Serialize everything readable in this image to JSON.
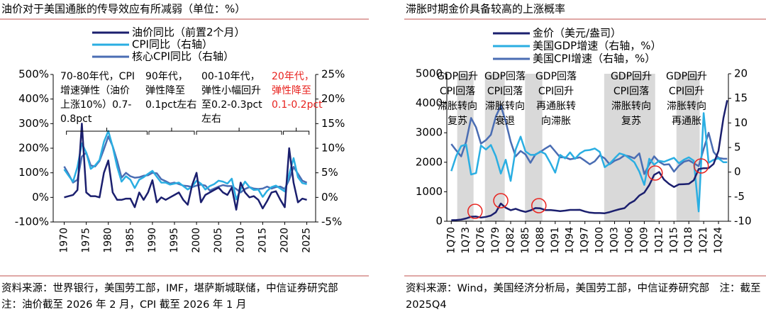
{
  "chart_data": [
    {
      "type": "line",
      "title": "油价对于美国通胀的传导效应有所减弱（单位：%）",
      "x": [
        1970,
        1971,
        1972,
        1973,
        1974,
        1975,
        1976,
        1977,
        1978,
        1979,
        1980,
        1981,
        1982,
        1983,
        1984,
        1985,
        1986,
        1987,
        1988,
        1989,
        1990,
        1991,
        1992,
        1993,
        1994,
        1995,
        1996,
        1997,
        1998,
        1999,
        2000,
        2001,
        2002,
        2003,
        2004,
        2005,
        2006,
        2007,
        2008,
        2009,
        2010,
        2011,
        2012,
        2013,
        2014,
        2015,
        2016,
        2017,
        2018,
        2019,
        2020,
        2021,
        2022,
        2023,
        2024,
        2025
      ],
      "xlim": [
        1967.5,
        2027
      ],
      "xticks": [
        1970,
        1975,
        1980,
        1985,
        1990,
        1995,
        2000,
        2005,
        2010,
        2015,
        2020,
        2025
      ],
      "ylim": [
        -100,
        500
      ],
      "yticks": [
        {
          "value": -100,
          "label": "-100%"
        },
        {
          "value": 0,
          "label": "0%"
        },
        {
          "value": 100,
          "label": "100%"
        },
        {
          "value": 200,
          "label": "200%"
        },
        {
          "value": 300,
          "label": "300%"
        },
        {
          "value": 400,
          "label": "400%"
        },
        {
          "value": 500,
          "label": "500%"
        }
      ],
      "y2lim": [
        -5,
        25
      ],
      "y2ticks": [
        {
          "value": -5,
          "label": "-5%"
        },
        {
          "value": 0,
          "label": "0%"
        },
        {
          "value": 5,
          "label": "5%"
        },
        {
          "value": 10,
          "label": "10%"
        },
        {
          "value": 15,
          "label": "15%"
        },
        {
          "value": 20,
          "label": "20%"
        },
        {
          "value": 25,
          "label": "25%"
        }
      ],
      "series": [
        {
          "name": "油价同比（前置2个月）",
          "color": "#1b1f6e",
          "values": [
            0,
            5,
            10,
            30,
            300,
            20,
            5,
            5,
            0,
            100,
            150,
            20,
            -10,
            -10,
            -5,
            -5,
            -40,
            20,
            -10,
            20,
            70,
            -20,
            0,
            -10,
            0,
            10,
            20,
            -10,
            -30,
            50,
            100,
            -20,
            10,
            20,
            30,
            40,
            20,
            10,
            40,
            -50,
            60,
            20,
            0,
            5,
            -10,
            -45,
            -15,
            20,
            25,
            -10,
            -40,
            200,
            60,
            -20,
            -5,
            -10
          ]
        },
        {
          "name": "CPI同比（右轴）",
          "color": "#2aaee2",
          "axis": "y2",
          "values": [
            5.7,
            4.4,
            3.2,
            6.2,
            11,
            9.1,
            5.8,
            6.5,
            7.6,
            11.3,
            13.5,
            10.3,
            6.2,
            3.2,
            4.3,
            3.6,
            1.9,
            3.6,
            4.1,
            4.8,
            5.4,
            4.2,
            3,
            3,
            2.6,
            2.8,
            3,
            2.3,
            1.6,
            2.2,
            3.4,
            2.8,
            1.6,
            2.3,
            2.7,
            3.4,
            3.2,
            2.8,
            3.8,
            -0.4,
            1.6,
            3.2,
            2.1,
            1.5,
            1.6,
            0.1,
            1.3,
            2.1,
            2.4,
            1.8,
            1.2,
            4.7,
            8,
            4.1,
            2.9,
            2.7
          ]
        },
        {
          "name": "核心CPI同比（右轴）",
          "color": "#4a6db3",
          "axis": "y2",
          "values": [
            6.3,
            4.7,
            3,
            3.6,
            8.3,
            9.1,
            6.5,
            6.3,
            7.4,
            9.8,
            12.4,
            10.4,
            7.4,
            4,
            5,
            4.3,
            4,
            4.1,
            4.4,
            4.5,
            5,
            4.9,
            3.7,
            3.3,
            2.8,
            3,
            2.7,
            2.4,
            2.3,
            2.1,
            2.4,
            2.6,
            2.4,
            1.4,
            1.8,
            2.2,
            2.5,
            2.3,
            2.3,
            1.7,
            1,
            1.7,
            2.1,
            1.8,
            1.7,
            1.8,
            2.2,
            1.8,
            2.1,
            2.2,
            1.7,
            3.6,
            6.2,
            4.8,
            3.4,
            3
          ]
        }
      ],
      "annotations": [
        {
          "lines": [
            "70-80年代，CPI",
            "增速弹性（油价",
            "上涨10%）0.7-",
            "0.8pct"
          ],
          "color": "#000000"
        },
        {
          "lines": [
            "90年代，",
            "弹性降至",
            "0.1pct左右"
          ],
          "color": "#000000"
        },
        {
          "lines": [
            "00-10年代，",
            "弹性小幅回升",
            "至0.2-0.3pct",
            "左右"
          ],
          "color": "#000000"
        },
        {
          "lines": [
            "20年代，",
            "弹性降至",
            "0.1-0.2pct"
          ],
          "color": "#e8231f"
        }
      ],
      "brackets": [
        [
          1970.5,
          1988.8
        ],
        [
          1989.2,
          1999.5
        ],
        [
          2000,
          2019.3
        ],
        [
          2019.7,
          2025.5
        ]
      ],
      "source": "资料来源：世界银行，美国劳工部，IMF，堪萨斯城联储，中信证券研究部　注：油价截至 2026 年 2 月，CPI 截至 2026 年 1 月"
    },
    {
      "type": "line",
      "title": "滞胀时期金价具备较高的上涨概率",
      "x": [
        1970,
        1971,
        1972,
        1973,
        1974,
        1975,
        1976,
        1977,
        1978,
        1979,
        1980,
        1981,
        1982,
        1983,
        1984,
        1985,
        1986,
        1987,
        1988,
        1989,
        1990,
        1991,
        1992,
        1993,
        1994,
        1995,
        1996,
        1997,
        1998,
        1999,
        2000,
        2001,
        2002,
        2003,
        2004,
        2005,
        2006,
        2007,
        2008,
        2009,
        2010,
        2011,
        2012,
        2013,
        2014,
        2015,
        2016,
        2017,
        2018,
        2019,
        2020,
        2021,
        2022,
        2023,
        2024,
        2025,
        2025.75
      ],
      "xlim": [
        1969.1,
        2026
      ],
      "xticks": [
        {
          "value": 1970,
          "label": "1Q70"
        },
        {
          "value": 1973,
          "label": "1Q73"
        },
        {
          "value": 1976,
          "label": "1Q76"
        },
        {
          "value": 1979,
          "label": "1Q79"
        },
        {
          "value": 1982,
          "label": "1Q82"
        },
        {
          "value": 1985,
          "label": "1Q85"
        },
        {
          "value": 1988,
          "label": "1Q88"
        },
        {
          "value": 1991,
          "label": "1Q91"
        },
        {
          "value": 1994,
          "label": "1Q94"
        },
        {
          "value": 1997,
          "label": "1Q97"
        },
        {
          "value": 2000,
          "label": "1Q00"
        },
        {
          "value": 2003,
          "label": "1Q03"
        },
        {
          "value": 2006,
          "label": "1Q06"
        },
        {
          "value": 2009,
          "label": "1Q09"
        },
        {
          "value": 2012,
          "label": "1Q12"
        },
        {
          "value": 2015,
          "label": "1Q15"
        },
        {
          "value": 2018,
          "label": "1Q18"
        },
        {
          "value": 2021,
          "label": "1Q21"
        },
        {
          "value": 2024,
          "label": "1Q24"
        }
      ],
      "ylim": [
        0,
        5000
      ],
      "yticks": [
        0,
        1000,
        2000,
        3000,
        4000,
        5000
      ],
      "y2lim": [
        -10,
        20
      ],
      "y2ticks": [
        -10,
        -5,
        0,
        5,
        10,
        15,
        20
      ],
      "series": [
        {
          "name": "金价（美元/盎司）",
          "color": "#1b1f6e",
          "values": [
            35,
            40,
            58,
            97,
            154,
            160,
            125,
            148,
            193,
            306,
            600,
            460,
            375,
            424,
            360,
            317,
            368,
            447,
            437,
            381,
            383,
            362,
            344,
            360,
            384,
            384,
            388,
            331,
            294,
            279,
            279,
            271,
            310,
            363,
            409,
            445,
            604,
            695,
            872,
            972,
            1225,
            1572,
            1669,
            1411,
            1266,
            1160,
            1251,
            1257,
            1268,
            1393,
            1770,
            1799,
            1800,
            1943,
            2386,
            3500,
            4100
          ]
        },
        {
          "name": "美国GDP增速（右轴，%）",
          "color": "#2aaee2",
          "axis": "y2",
          "values": [
            0.2,
            3.3,
            5.3,
            5.6,
            -0.5,
            -0.2,
            5.4,
            4.6,
            5.5,
            3.2,
            -0.3,
            2.5,
            -1.8,
            4.6,
            7.2,
            4.2,
            3.5,
            3.5,
            4.2,
            3.7,
            1.9,
            -0.1,
            3.5,
            2.8,
            4,
            2.7,
            3.8,
            4.4,
            4.5,
            4.8,
            4.1,
            1,
            1.7,
            2.8,
            3.8,
            3.5,
            2.8,
            2,
            0.1,
            -2.6,
            2.7,
            1.5,
            2.3,
            2.1,
            2.5,
            2.9,
            1.8,
            2.5,
            3,
            2.3,
            -8,
            12,
            1.9,
            2.5,
            2.8,
            2,
            2
          ]
        },
        {
          "name": "美国CPI增速（右轴，%）",
          "color": "#4a6db3",
          "axis": "y2",
          "values": [
            5.7,
            4.4,
            3.2,
            6.2,
            11,
            9.1,
            5.8,
            6.5,
            7.6,
            11.3,
            13.5,
            10.3,
            6.2,
            3.2,
            4.3,
            3.6,
            1.9,
            3.6,
            4.1,
            4.8,
            5.4,
            4.2,
            3,
            3,
            2.6,
            2.8,
            3,
            2.3,
            1.6,
            2.2,
            3.4,
            2.8,
            1.6,
            2.3,
            2.7,
            3.4,
            3.2,
            2.8,
            3.8,
            -0.4,
            1.6,
            3.2,
            2.1,
            1.5,
            1.6,
            0.1,
            1.3,
            2.1,
            2.4,
            1.8,
            1.2,
            4.7,
            8,
            4.1,
            2.9,
            2.7,
            2.7
          ]
        }
      ],
      "bands": [
        [
          1971.2,
          1974.5
        ],
        [
          1976.8,
          1980.8
        ],
        [
          1984.9,
          1988.4
        ],
        [
          2000.9,
          2011.2
        ],
        [
          2015.5,
          2020.2
        ]
      ],
      "highlights": {
        "x": [
          1974.8,
          1980,
          1987.7,
          2011.2,
          2020.5
        ],
        "y": [
          336,
          697,
          529,
          1635,
          1875
        ]
      },
      "annotations": [
        {
          "lines": [
            "GDP回升",
            "CPI回落",
            "滞胀转向",
            "复苏"
          ],
          "color": "#000000"
        },
        {
          "lines": [
            "GDP回落",
            "CPI回落",
            "滞胀转向",
            "衰退"
          ],
          "color": "#000000"
        },
        {
          "lines": [
            "GDP回落",
            "CPI回升",
            "再通胀转",
            "向滞胀"
          ],
          "color": "#000000"
        },
        {
          "lines": [
            "GDP回升",
            "CPI回落",
            "滞胀转向",
            "复苏"
          ],
          "color": "#000000"
        },
        {
          "lines": [
            "GDP回升",
            "CPI回升",
            "滞胀转向",
            "再通胀"
          ],
          "color": "#000000"
        }
      ],
      "source": "资料来源：Wind，美国经济分析局，美国劳工部，中信证券研究部　注：截至 2025Q4"
    }
  ]
}
